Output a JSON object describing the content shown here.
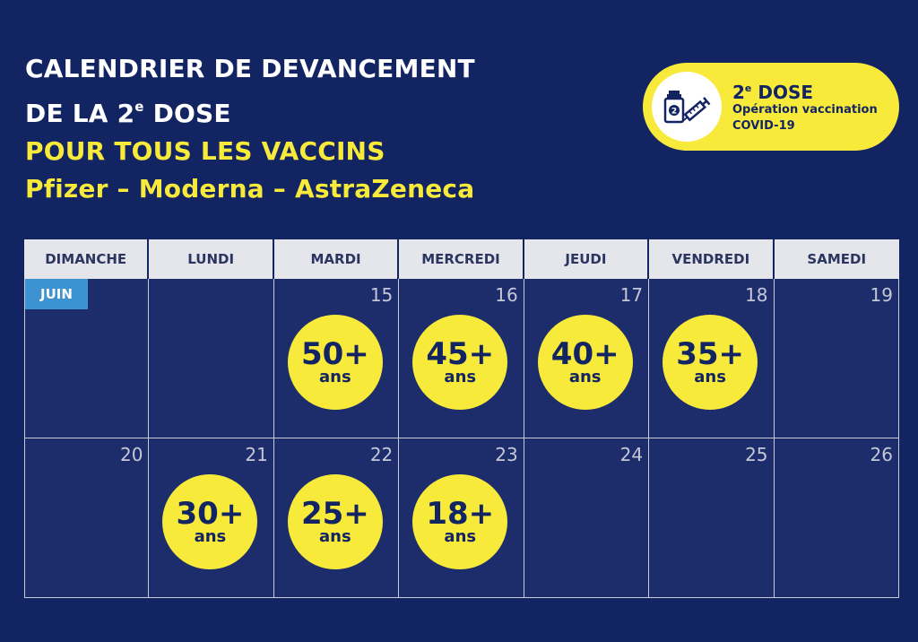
{
  "title": {
    "line1": "CALENDRIER DE DEVANCEMENT",
    "line2_prefix": "DE LA 2",
    "line2_sup": "e",
    "line2_suffix": " DOSE",
    "line3": "POUR TOUS LES VACCINS",
    "line4": "Pfizer – Moderna – AstraZeneca"
  },
  "badge": {
    "title_prefix": "2",
    "title_sup": "e",
    "title_suffix": " DOSE",
    "subtitle1": "Opération vaccination",
    "subtitle2": "COVID-19",
    "icon": "vaccine-vial-syringe-icon"
  },
  "calendar": {
    "month": "JUIN",
    "days": [
      "DIMANCHE",
      "LUNDI",
      "MARDI",
      "MERCREDI",
      "JEUDI",
      "VENDREDI",
      "SAMEDI"
    ],
    "week1": [
      {
        "day": "",
        "age": ""
      },
      {
        "day": "",
        "age": ""
      },
      {
        "day": "15",
        "age": "50+"
      },
      {
        "day": "16",
        "age": "45+"
      },
      {
        "day": "17",
        "age": "40+"
      },
      {
        "day": "18",
        "age": "35+"
      },
      {
        "day": "19",
        "age": ""
      }
    ],
    "week2": [
      {
        "day": "20",
        "age": ""
      },
      {
        "day": "21",
        "age": "30+"
      },
      {
        "day": "22",
        "age": "25+"
      },
      {
        "day": "23",
        "age": "18+"
      },
      {
        "day": "24",
        "age": ""
      },
      {
        "day": "25",
        "age": ""
      },
      {
        "day": "26",
        "age": ""
      }
    ],
    "age_unit": "ans"
  },
  "colors": {
    "background": "#132463",
    "accent_yellow": "#f7ea3a",
    "month_tag": "#3d93d1"
  }
}
